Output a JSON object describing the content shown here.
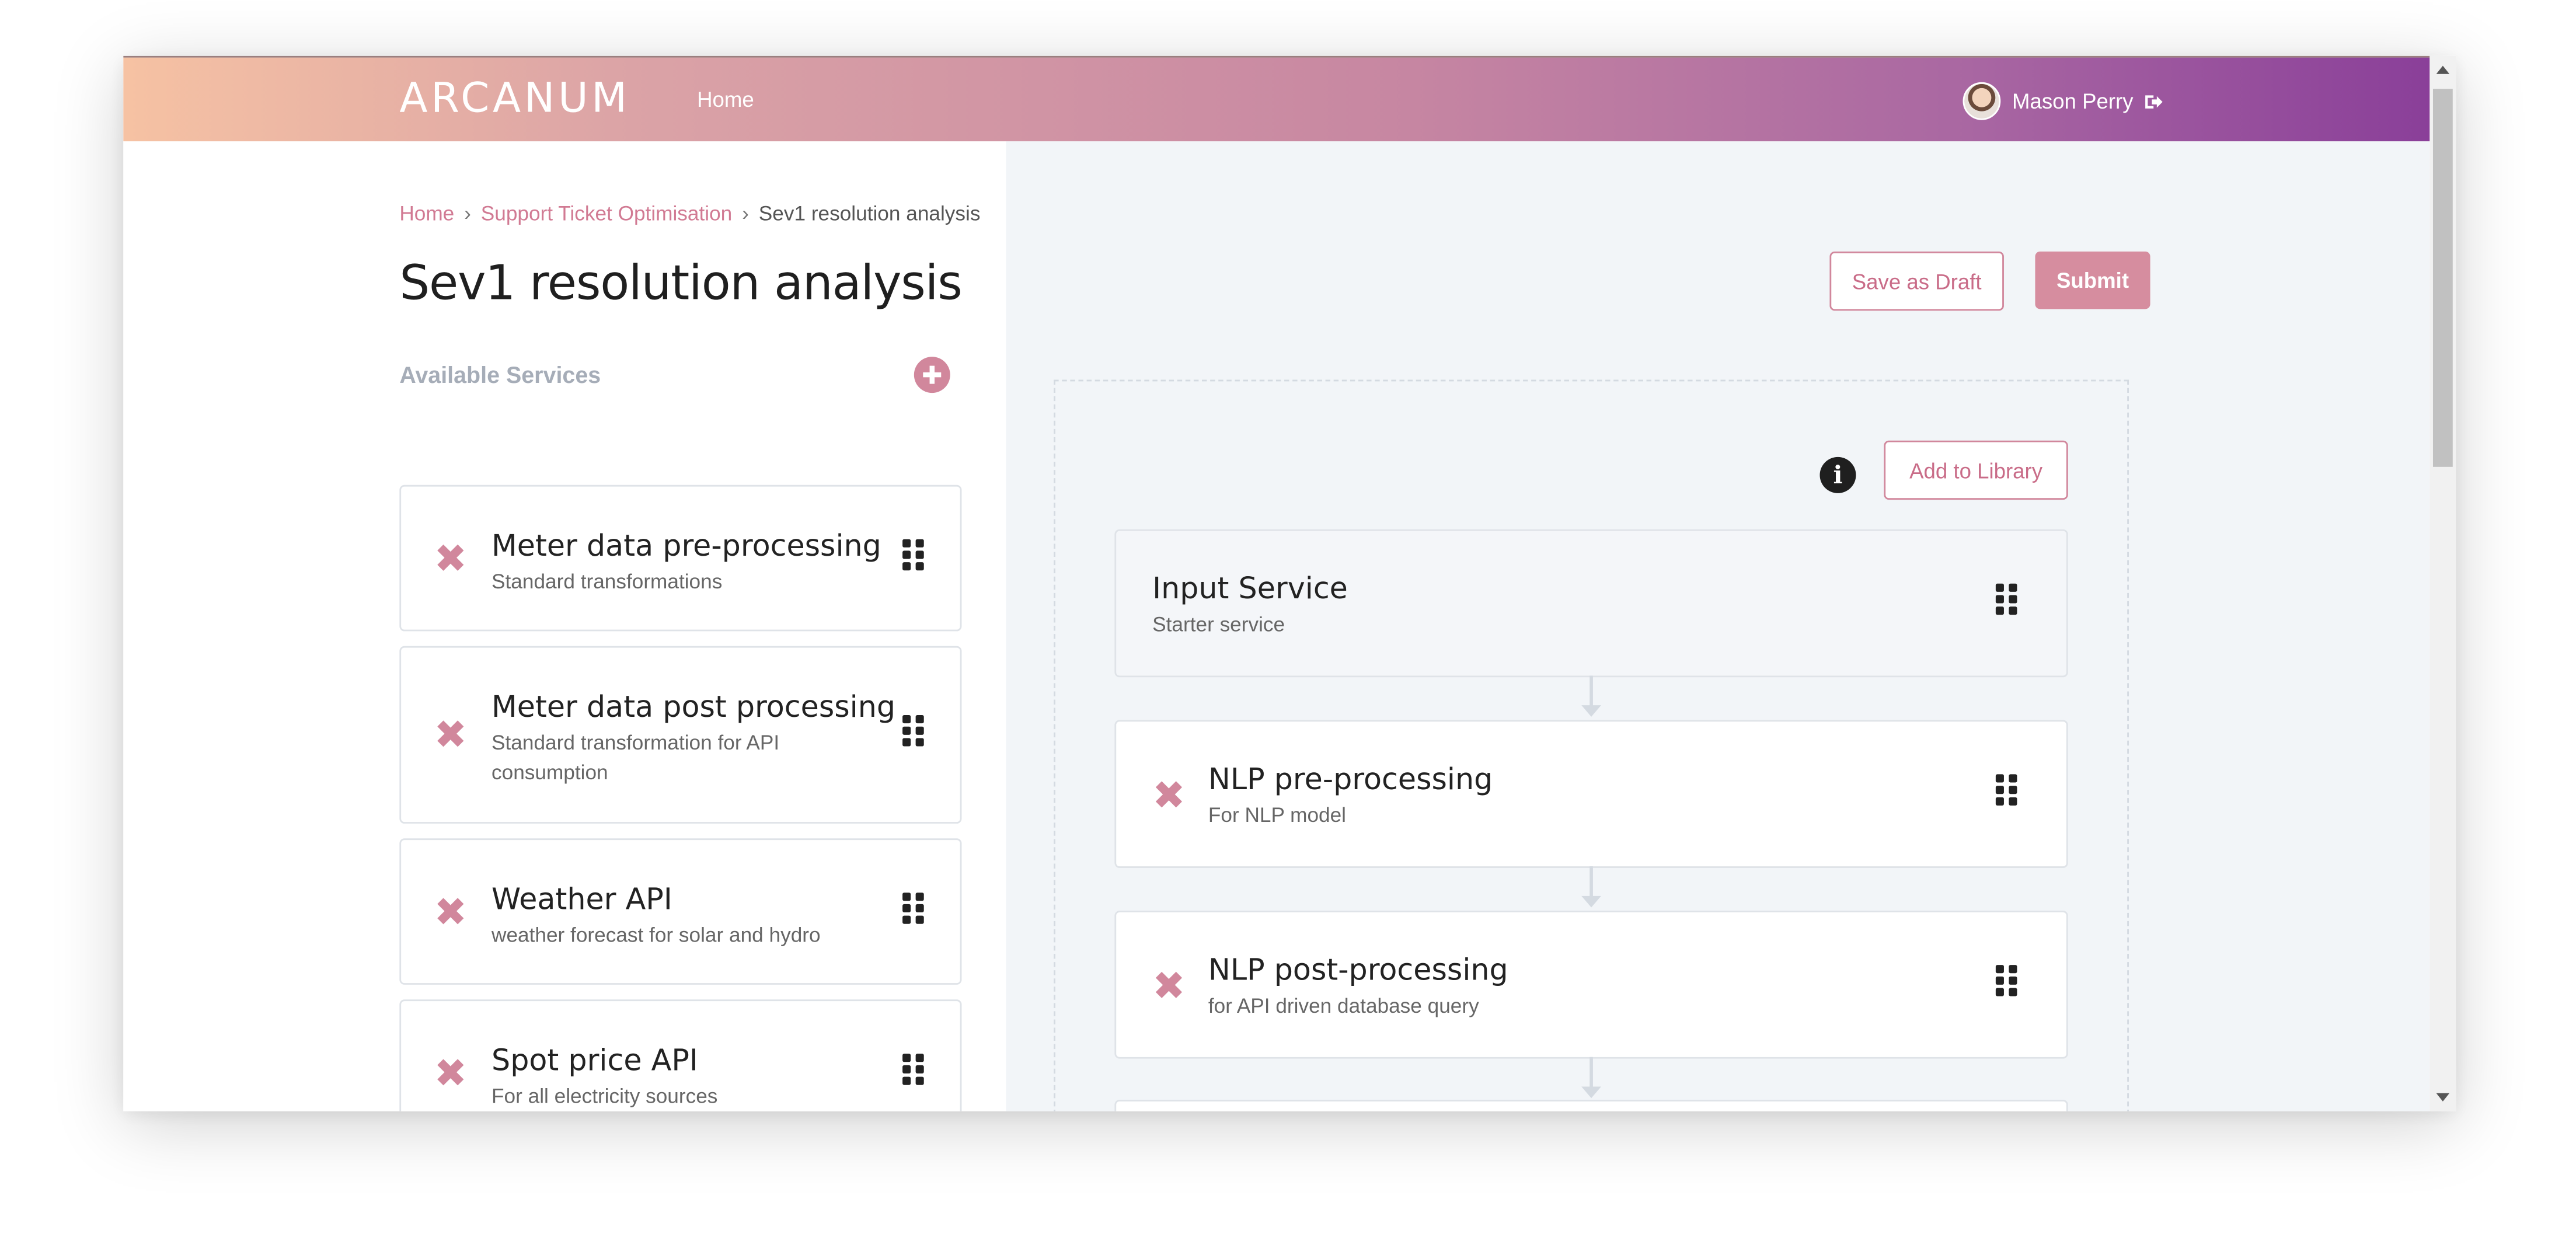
{
  "header": {
    "logo": "ARCANUM",
    "nav_home": "Home",
    "user_name": "Mason Perry"
  },
  "breadcrumb": {
    "items": [
      "Home",
      "Support Ticket Optimisation",
      "Sev1 resolution analysis"
    ],
    "separator": "›"
  },
  "page": {
    "title": "Sev1 resolution analysis",
    "available_services_label": "Available Services"
  },
  "services": [
    {
      "title": "Meter data pre-processing",
      "subtitle": "Standard transformations"
    },
    {
      "title": "Meter data post processing",
      "subtitle": "Standard transformation for API consumption"
    },
    {
      "title": "Weather API",
      "subtitle": "weather forecast for solar and hydro"
    },
    {
      "title": "Spot price API",
      "subtitle": "For all electricity sources"
    }
  ],
  "actions": {
    "save_draft": "Save as Draft",
    "submit": "Submit",
    "add_to_library": "Add to Library"
  },
  "pipeline": [
    {
      "title": "Input Service",
      "subtitle": "Starter service"
    },
    {
      "title": "NLP pre-processing",
      "subtitle": "For NLP model"
    },
    {
      "title": "NLP post-processing",
      "subtitle": "for API driven database query"
    }
  ],
  "colors": {
    "accent": "#d1879c",
    "header_gradient_start": "#f6c2a3",
    "header_gradient_end": "#8a3f99",
    "panel_bg": "#f2f5f8"
  },
  "icons": {
    "remove": "close-icon",
    "drag": "drag-handle-icon",
    "add": "plus-circle-icon",
    "info": "info-icon",
    "logout": "logout-icon"
  }
}
